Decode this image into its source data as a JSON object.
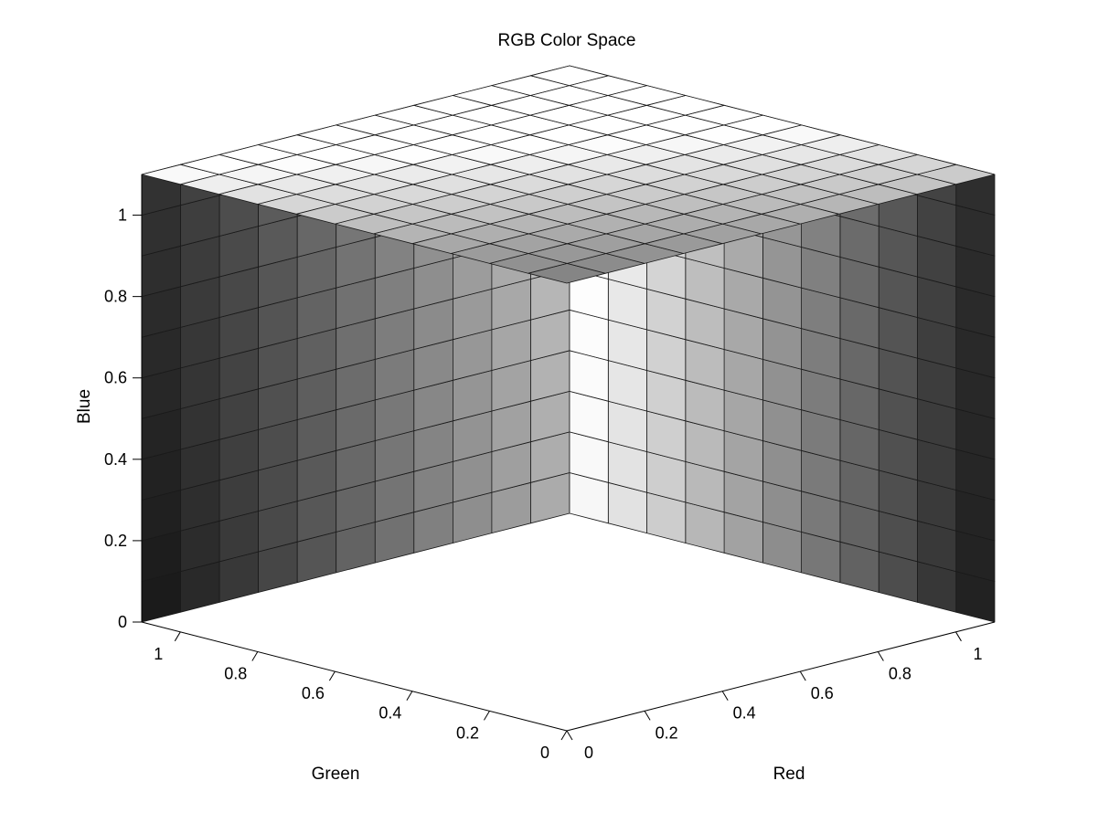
{
  "chart_data": {
    "type": "3d-cube-grid",
    "title": "RGB Color Space",
    "xlabel": "Red",
    "ylabel": "Green",
    "zlabel": "Blue",
    "xlim": [
      0,
      1.1
    ],
    "ylim": [
      0,
      1.1
    ],
    "zlim": [
      0,
      1.1
    ],
    "grid_divisions": 11,
    "x_ticks": [
      "0",
      "0.2",
      "0.4",
      "0.6",
      "0.8",
      "1"
    ],
    "y_ticks": [
      "0",
      "0.2",
      "0.4",
      "0.6",
      "0.8",
      "1"
    ],
    "z_ticks": [
      "0",
      "0.2",
      "0.4",
      "0.6",
      "0.8",
      "1"
    ],
    "x_tick_values": [
      0,
      0.2,
      0.4,
      0.6,
      0.8,
      1
    ],
    "y_tick_values": [
      0,
      0.2,
      0.4,
      0.6,
      0.8,
      1
    ],
    "z_tick_values": [
      0,
      0.2,
      0.4,
      0.6,
      0.8,
      1
    ],
    "colormap": "grayscale",
    "background": "#ffffff",
    "edge_color": "#1a1a1a"
  }
}
